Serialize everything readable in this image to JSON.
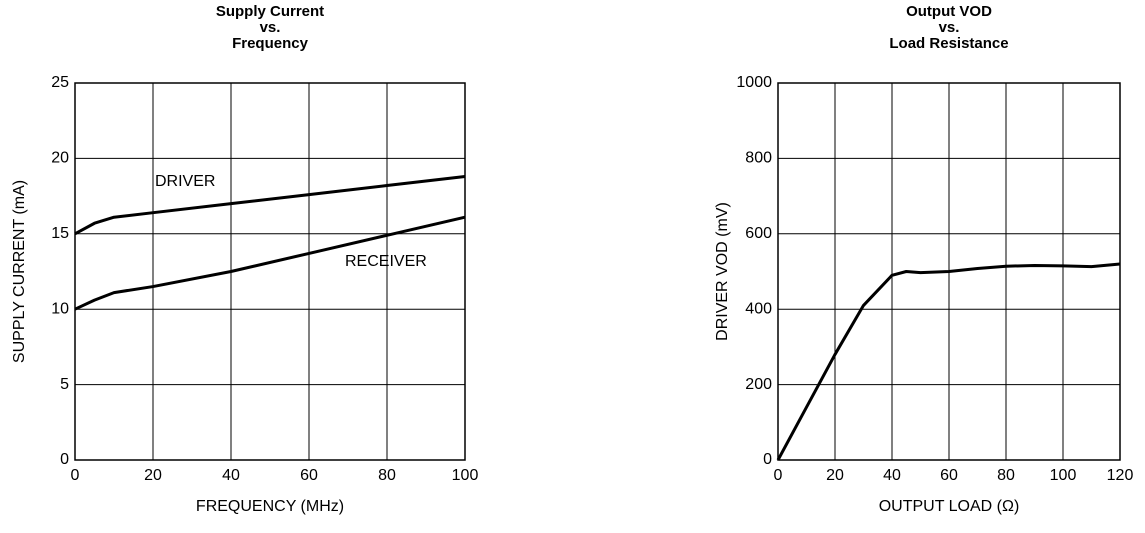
{
  "chart_data": [
    {
      "type": "line",
      "title": [
        "Supply Current",
        "vs.",
        "Frequency"
      ],
      "x_label": "FREQUENCY (MHz)",
      "y_label": "SUPPLY CURRENT (mA)",
      "x": [
        0,
        5,
        10,
        20,
        40,
        60,
        80,
        100
      ],
      "series": [
        {
          "name": "DRIVER",
          "color": "#000000",
          "values": [
            15,
            15.7,
            16.1,
            16.4,
            17,
            17.6,
            18.2,
            18.8
          ]
        },
        {
          "name": "RECEIVER",
          "color": "#000000",
          "values": [
            10,
            10.6,
            11.1,
            11.5,
            12.5,
            13.7,
            14.9,
            16.1
          ]
        }
      ],
      "xlim": [
        0,
        100
      ],
      "xticks": [
        0,
        20,
        40,
        60,
        80,
        100
      ],
      "ylim": [
        0,
        25
      ],
      "yticks": [
        0,
        5,
        10,
        15,
        20,
        25
      ],
      "grid": true
    },
    {
      "type": "line",
      "title": [
        "Output VOD",
        "vs.",
        "Load Resistance"
      ],
      "x_label": "OUTPUT LOAD (Ω)",
      "y_label": "DRIVER VOD (mV)",
      "x": [
        0,
        10,
        20,
        30,
        40,
        45,
        50,
        60,
        70,
        80,
        90,
        100,
        110,
        120
      ],
      "series": [
        {
          "name": "VOD",
          "color": "#000000",
          "values": [
            0,
            140,
            280,
            410,
            490,
            500,
            497,
            500,
            508,
            514,
            516,
            515,
            513,
            520
          ]
        }
      ],
      "xlim": [
        0,
        120
      ],
      "xticks": [
        0,
        20,
        40,
        60,
        80,
        100,
        120
      ],
      "ylim": [
        0,
        1000
      ],
      "yticks": [
        0,
        200,
        400,
        600,
        800,
        1000
      ],
      "grid": true
    }
  ]
}
